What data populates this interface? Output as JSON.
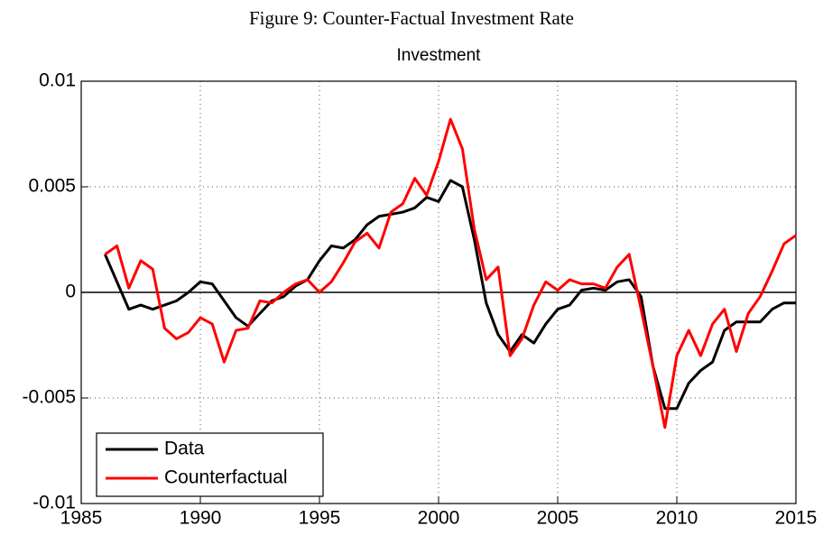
{
  "chart_data": {
    "type": "line",
    "title": "Figure 9: Counter-Factual Investment Rate",
    "subtitle": "Investment",
    "x": [
      1986,
      1986.5,
      1987,
      1987.5,
      1988,
      1988.5,
      1989,
      1989.5,
      1990,
      1990.5,
      1991,
      1991.5,
      1992,
      1992.5,
      1993,
      1993.5,
      1994,
      1994.5,
      1995,
      1995.5,
      1996,
      1996.5,
      1997,
      1997.5,
      1998,
      1998.5,
      1999,
      1999.5,
      2000,
      2000.5,
      2001,
      2001.5,
      2002,
      2002.5,
      2003,
      2003.5,
      2004,
      2004.5,
      2005,
      2005.5,
      2006,
      2006.5,
      2007,
      2007.5,
      2008,
      2008.5,
      2009,
      2009.5,
      2010,
      2010.5,
      2011,
      2011.5,
      2012,
      2012.5,
      2013,
      2013.5,
      2014,
      2014.5,
      2015
    ],
    "series": [
      {
        "name": "Data",
        "color": "#000000",
        "values": [
          0.0018,
          0.0005,
          -0.0008,
          -0.0006,
          -0.0008,
          -0.0006,
          -0.0004,
          0.0,
          0.0005,
          0.0004,
          -0.0004,
          -0.0012,
          -0.0016,
          -0.001,
          -0.0004,
          -0.0002,
          0.0003,
          0.0006,
          0.0015,
          0.0022,
          0.0021,
          0.0025,
          0.0032,
          0.0036,
          0.0037,
          0.0038,
          0.004,
          0.0045,
          0.0043,
          0.0053,
          0.005,
          0.0025,
          -0.0005,
          -0.002,
          -0.0028,
          -0.002,
          -0.0024,
          -0.0015,
          -0.0008,
          -0.0006,
          0.0001,
          0.0002,
          0.0001,
          0.0005,
          0.0006,
          -0.0002,
          -0.0035,
          -0.0055,
          -0.0055,
          -0.0043,
          -0.0037,
          -0.0033,
          -0.0018,
          -0.0014,
          -0.0014,
          -0.0014,
          -0.0008,
          -0.0005,
          -0.0005
        ]
      },
      {
        "name": "Counterfactual",
        "color": "#ff0000",
        "values": [
          0.0018,
          0.0022,
          0.0002,
          0.0015,
          0.0011,
          -0.0017,
          -0.0022,
          -0.0019,
          -0.0012,
          -0.0015,
          -0.0033,
          -0.0018,
          -0.0017,
          -0.0004,
          -0.0005,
          0.0,
          0.0004,
          0.0006,
          0.0,
          0.0005,
          0.0014,
          0.0024,
          0.0028,
          0.0021,
          0.0038,
          0.0042,
          0.0054,
          0.0046,
          0.0062,
          0.0082,
          0.0068,
          0.003,
          0.0006,
          0.0012,
          -0.003,
          -0.0022,
          -0.0006,
          0.0005,
          0.0001,
          0.0006,
          0.0004,
          0.0004,
          0.0002,
          0.0012,
          0.0018,
          -0.0008,
          -0.0035,
          -0.0064,
          -0.003,
          -0.0018,
          -0.003,
          -0.0015,
          -0.0008,
          -0.0028,
          -0.001,
          -0.0002,
          0.001,
          0.0023,
          0.0027
        ]
      }
    ],
    "xlim": [
      1985,
      2015
    ],
    "xticks": [
      1985,
      1990,
      1995,
      2000,
      2005,
      2010,
      2015
    ],
    "ylim": [
      -0.01,
      0.01
    ],
    "yticks": [
      0.01,
      0.005,
      0,
      -0.005,
      -0.01
    ],
    "grid": true,
    "legend": "southwest"
  }
}
